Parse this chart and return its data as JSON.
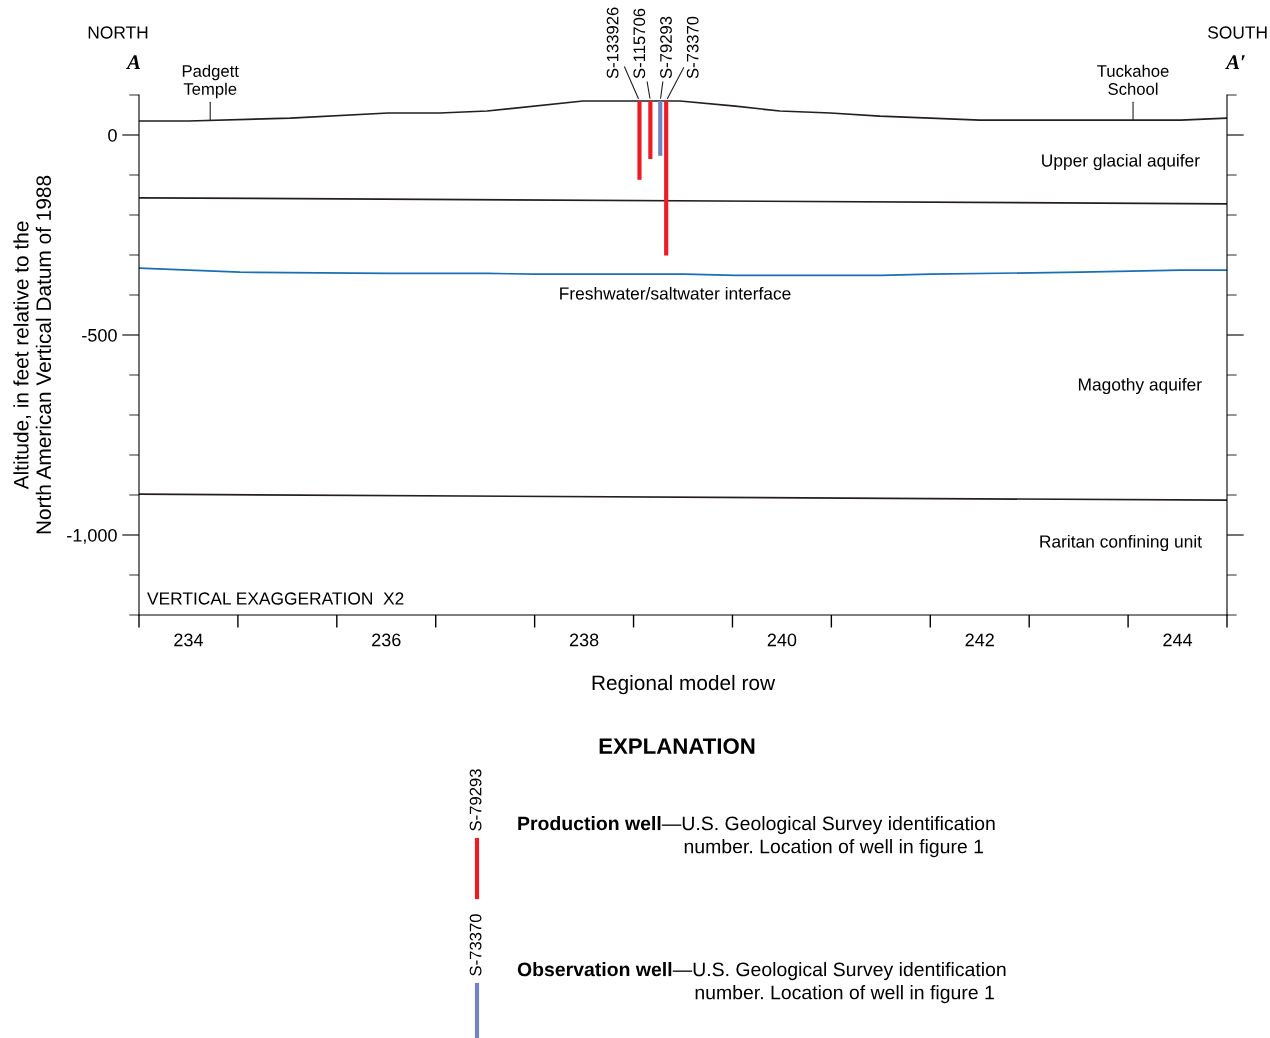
{
  "chart_data": {
    "type": "line",
    "xlabel": "Regional model row",
    "ylabel": "Altitude, in feet relative to the\nNorth American Vertical Datum of 1988",
    "xlim": [
      233.5,
      244.5
    ],
    "xticks": [
      {
        "value": 233.5,
        "label": null
      },
      {
        "value": 234,
        "label": "234"
      },
      {
        "value": 234.5,
        "label": null
      },
      {
        "value": 235.5,
        "label": null
      },
      {
        "value": 236,
        "label": "236"
      },
      {
        "value": 236.5,
        "label": null
      },
      {
        "value": 237.5,
        "label": null
      },
      {
        "value": 238,
        "label": "238"
      },
      {
        "value": 238.5,
        "label": null
      },
      {
        "value": 239.5,
        "label": null
      },
      {
        "value": 240,
        "label": "240"
      },
      {
        "value": 240.5,
        "label": null
      },
      {
        "value": 241.5,
        "label": null
      },
      {
        "value": 242,
        "label": "242"
      },
      {
        "value": 242.5,
        "label": null
      },
      {
        "value": 243.5,
        "label": null
      },
      {
        "value": 244,
        "label": "244"
      },
      {
        "value": 244.5,
        "label": null
      }
    ],
    "ylim": [
      -1200,
      100
    ],
    "yticks": [
      {
        "value": 100,
        "label": null
      },
      {
        "value": 0,
        "label": "0"
      },
      {
        "value": -100,
        "label": null
      },
      {
        "value": -200,
        "label": null
      },
      {
        "value": -300,
        "label": null
      },
      {
        "value": -400,
        "label": null
      },
      {
        "value": -500,
        "label": "-500"
      },
      {
        "value": -600,
        "label": null
      },
      {
        "value": -700,
        "label": null
      },
      {
        "value": -800,
        "label": null
      },
      {
        "value": -900,
        "label": null
      },
      {
        "value": -1000,
        "label": "-1,000"
      },
      {
        "value": -1100,
        "label": null
      },
      {
        "value": -1200,
        "label": null
      }
    ],
    "series": [
      {
        "color": "#231f20",
        "x": [
          233.5,
          234.0,
          235.03,
          236.02,
          236.54,
          237.02,
          237.99,
          238.97,
          239.53,
          239.98,
          240.49,
          240.99,
          241.5,
          242.0,
          244.03,
          244.5
        ],
        "values": [
          35,
          35,
          42,
          55,
          55,
          60,
          85,
          85,
          72,
          60,
          55,
          47,
          42,
          37,
          37,
          42
        ]
      },
      {
        "color": "#231f20",
        "x": [
          233.5,
          244.5
        ],
        "values": [
          -157,
          -172
        ]
      },
      {
        "color": "#1a6eb4",
        "x": [
          233.5,
          234.52,
          236.02,
          237.02,
          237.5,
          239.02,
          239.53,
          241.0,
          241.5,
          243.02,
          244.03,
          244.5
        ],
        "values": [
          -333,
          -343,
          -346,
          -346,
          -348,
          -348,
          -351,
          -351,
          -348,
          -343,
          -338,
          -338
        ]
      },
      {
        "color": "#231f20",
        "x": [
          233.5,
          244.5
        ],
        "values": [
          -898,
          -913
        ]
      },
      {
        "name": "S-133926",
        "color": "#ed1c24",
        "x": [
          238.56,
          238.56
        ],
        "values": [
          85,
          -112
        ]
      },
      {
        "name": "S-115706",
        "color": "#ed1c24",
        "x": [
          238.67,
          238.67
        ],
        "values": [
          85,
          -60
        ]
      },
      {
        "name": "S-79293",
        "color": "#7384c4",
        "x": [
          238.77,
          238.77
        ],
        "values": [
          85,
          -52
        ]
      },
      {
        "name": "S-73370",
        "color": "#ed1c24",
        "x": [
          238.83,
          238.83
        ],
        "values": [
          85,
          -301
        ]
      }
    ],
    "annotations": [
      "NORTH",
      "SOUTH",
      "A",
      "A′",
      {
        "text": "Padgett\nTemple",
        "x": 234.22,
        "y": 37
      },
      {
        "text": "Tuckahoe\nSchool",
        "x": 243.55,
        "y": 37
      },
      "Upper glacial aquifer",
      "Freshwater/saltwater interface",
      "Magothy aquifer",
      "Raritan confining unit",
      "VERTICAL EXAGGERATION  X2",
      "EXPLANATION",
      "S-79293",
      "Production well",
      "—U.S. Geological Survey identification\n    number. Location of well in figure 1",
      "S-73370",
      "Observation well",
      "—U.S. Geological Survey identification\n    number. Location of well in figure 1"
    ]
  }
}
